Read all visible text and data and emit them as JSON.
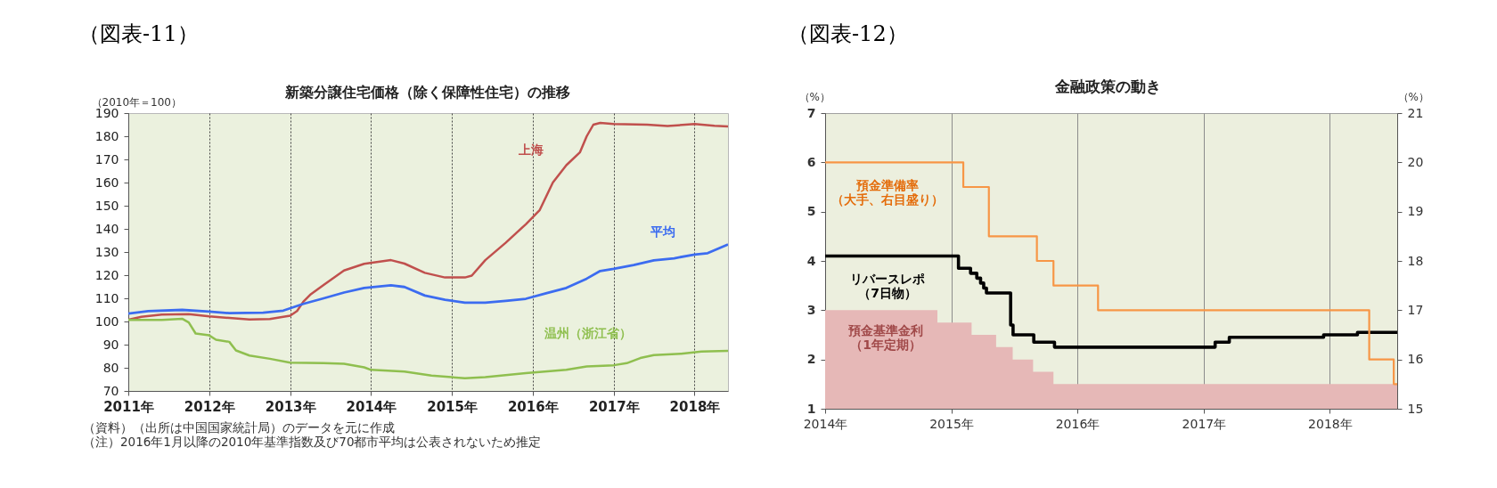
{
  "chart_data": [
    {
      "type": "line",
      "title": "新築分譲住宅価格（除く保障性住宅）の推移",
      "ylabel": "（2010年＝100）",
      "series": [
        {
          "name": "上海",
          "color": "#c0504d",
          "x": [
            "2011-01",
            "2011-03",
            "2011-06",
            "2011-10",
            "2012-01",
            "2012-04",
            "2012-07",
            "2012-10",
            "2012-12",
            "2013-01",
            "2013-02",
            "2013-03",
            "2013-04",
            "2013-06",
            "2013-09",
            "2013-12",
            "2014-04",
            "2014-06",
            "2014-09",
            "2014-12",
            "2015-03",
            "2015-04",
            "2015-06",
            "2015-09",
            "2015-12",
            "2016-02",
            "2016-04",
            "2016-06",
            "2016-08",
            "2016-09",
            "2016-10",
            "2016-11",
            "2017-01",
            "2017-06",
            "2017-09",
            "2018-01",
            "2018-04",
            "2018-06"
          ],
          "values": [
            100.8,
            102,
            103,
            103.2,
            102.2,
            101.5,
            100.9,
            101.1,
            102,
            102.5,
            104.5,
            108.5,
            111.5,
            115.8,
            122,
            124.9,
            126.5,
            125,
            121,
            119,
            119,
            119.8,
            126.5,
            134,
            142,
            148,
            160,
            167.5,
            173,
            180,
            185,
            185.8,
            185.3,
            185,
            184.4,
            185.3,
            184.5,
            184.2
          ]
        },
        {
          "name": "平均",
          "color": "#3c6cf0",
          "x": [
            "2011-01",
            "2011-04",
            "2011-09",
            "2012-01",
            "2012-04",
            "2012-09",
            "2012-12",
            "2013-03",
            "2013-06",
            "2013-09",
            "2013-12",
            "2014-04",
            "2014-06",
            "2014-09",
            "2014-12",
            "2015-03",
            "2015-06",
            "2015-09",
            "2015-12",
            "2016-03",
            "2016-06",
            "2016-09",
            "2016-11",
            "2017-01",
            "2017-04",
            "2017-07",
            "2017-10",
            "2018-01",
            "2018-03",
            "2018-06"
          ],
          "values": [
            103.4,
            104.5,
            105,
            104.3,
            103.6,
            103.8,
            104.7,
            107.6,
            110,
            112.5,
            114.5,
            115.6,
            114.9,
            111.2,
            109.4,
            108.1,
            108.1,
            108.9,
            109.8,
            112.2,
            114.5,
            118.5,
            121.8,
            122.7,
            124.4,
            126.4,
            127.3,
            128.9,
            129.5,
            133.3
          ]
        },
        {
          "name": "温州（浙江省）",
          "color": "#8fbf4f",
          "x": [
            "2011-01",
            "2011-06",
            "2011-09",
            "2011-10",
            "2011-11",
            "2012-01",
            "2012-02",
            "2012-04",
            "2012-05",
            "2012-07",
            "2012-10",
            "2013-01",
            "2013-06",
            "2013-09",
            "2013-12",
            "2014-01",
            "2014-06",
            "2014-10",
            "2015-03",
            "2015-06",
            "2015-12",
            "2016-06",
            "2016-09",
            "2017-01",
            "2017-03",
            "2017-05",
            "2017-07",
            "2017-11",
            "2018-02",
            "2018-06"
          ],
          "values": [
            100.7,
            100.7,
            101.2,
            99.6,
            94.8,
            94,
            92.1,
            91.2,
            87.5,
            85.3,
            83.9,
            82.2,
            82,
            81.7,
            80.2,
            79.1,
            78.4,
            76.6,
            75.5,
            76,
            77.7,
            79.1,
            80.6,
            81.1,
            82,
            84.2,
            85.5,
            86.1,
            87,
            87.3
          ]
        }
      ],
      "xlim": [
        "2011-01",
        "2018-06"
      ],
      "xticks": [
        {
          "value": "2011",
          "label": "2011年"
        },
        {
          "value": "2012",
          "label": "2012年"
        },
        {
          "value": "2013",
          "label": "2013年"
        },
        {
          "value": "2014",
          "label": "2014年"
        },
        {
          "value": "2015",
          "label": "2015年"
        },
        {
          "value": "2016",
          "label": "2016年"
        },
        {
          "value": "2017",
          "label": "2017年"
        },
        {
          "value": "2018",
          "label": "2018年"
        }
      ],
      "ylim": [
        70,
        190
      ],
      "yticks": [
        70,
        80,
        90,
        100,
        110,
        120,
        130,
        140,
        150,
        160,
        170,
        180,
        190
      ],
      "grid": "x",
      "annotations": [
        "（図表-11）",
        "（資料）（出所は中国国家統計局）のデータを元に作成",
        "（注）2016年1月以降の2010年基準指数及び70都市平均は公表されないため推定"
      ]
    },
    {
      "type": "step",
      "title": "金融政策の動き",
      "ylabel": "（%）",
      "y2label": "（%）",
      "series": [
        {
          "name": "預金準備率（大手、右目盛り）",
          "color": "#f79646",
          "axis": "y2",
          "x": [
            "2014-01-01",
            "2015-02-05",
            "2015-04-20",
            "2015-09-06",
            "2015-10-24",
            "2016-03-01",
            "2018-04-25",
            "2018-07-05",
            "2018-07-15"
          ],
          "values": [
            20,
            19.5,
            18.5,
            18,
            17.5,
            17,
            16,
            15.5,
            15.5
          ]
        },
        {
          "name": "リバースレポ（7日物）",
          "color": "#000000",
          "x": [
            "2014-01-01",
            "2015-01-22",
            "2015-02-26",
            "2015-03-16",
            "2015-03-27",
            "2015-04-05",
            "2015-04-13",
            "2015-06-22",
            "2015-06-29",
            "2015-08-28",
            "2015-10-27",
            "2017-02-03",
            "2017-03-16",
            "2017-12-14",
            "2018-03-22",
            "2018-07-15"
          ],
          "values": [
            4.1,
            3.85,
            3.75,
            3.65,
            3.55,
            3.45,
            3.35,
            2.7,
            2.5,
            2.35,
            2.25,
            2.35,
            2.45,
            2.5,
            2.55,
            2.55
          ]
        },
        {
          "name": "預金基準金利（1年定期）",
          "type": "area",
          "color": "#e6b8b7",
          "x": [
            "2014-01-01",
            "2014-11-22",
            "2015-03-01",
            "2015-05-11",
            "2015-06-28",
            "2015-08-26",
            "2015-10-24",
            "2018-07-15"
          ],
          "values": [
            3,
            2.75,
            2.5,
            2.25,
            2,
            1.75,
            1.5,
            1.5
          ]
        }
      ],
      "xlim": [
        "2014-01-01",
        "2018-07-15"
      ],
      "xticks": [
        {
          "value": "2014",
          "label": "2014年"
        },
        {
          "value": "2015",
          "label": "2015年"
        },
        {
          "value": "2016",
          "label": "2016年"
        },
        {
          "value": "2017",
          "label": "2017年"
        },
        {
          "value": "2018",
          "label": "2018年"
        }
      ],
      "ylim": [
        1,
        7
      ],
      "yticks": [
        1,
        2,
        3,
        4,
        5,
        6,
        7
      ],
      "y2lim": [
        15,
        21
      ],
      "y2ticks": [
        15,
        16,
        17,
        18,
        19,
        20,
        21
      ],
      "grid": "x",
      "annotations": [
        "（図表-12）"
      ]
    }
  ]
}
